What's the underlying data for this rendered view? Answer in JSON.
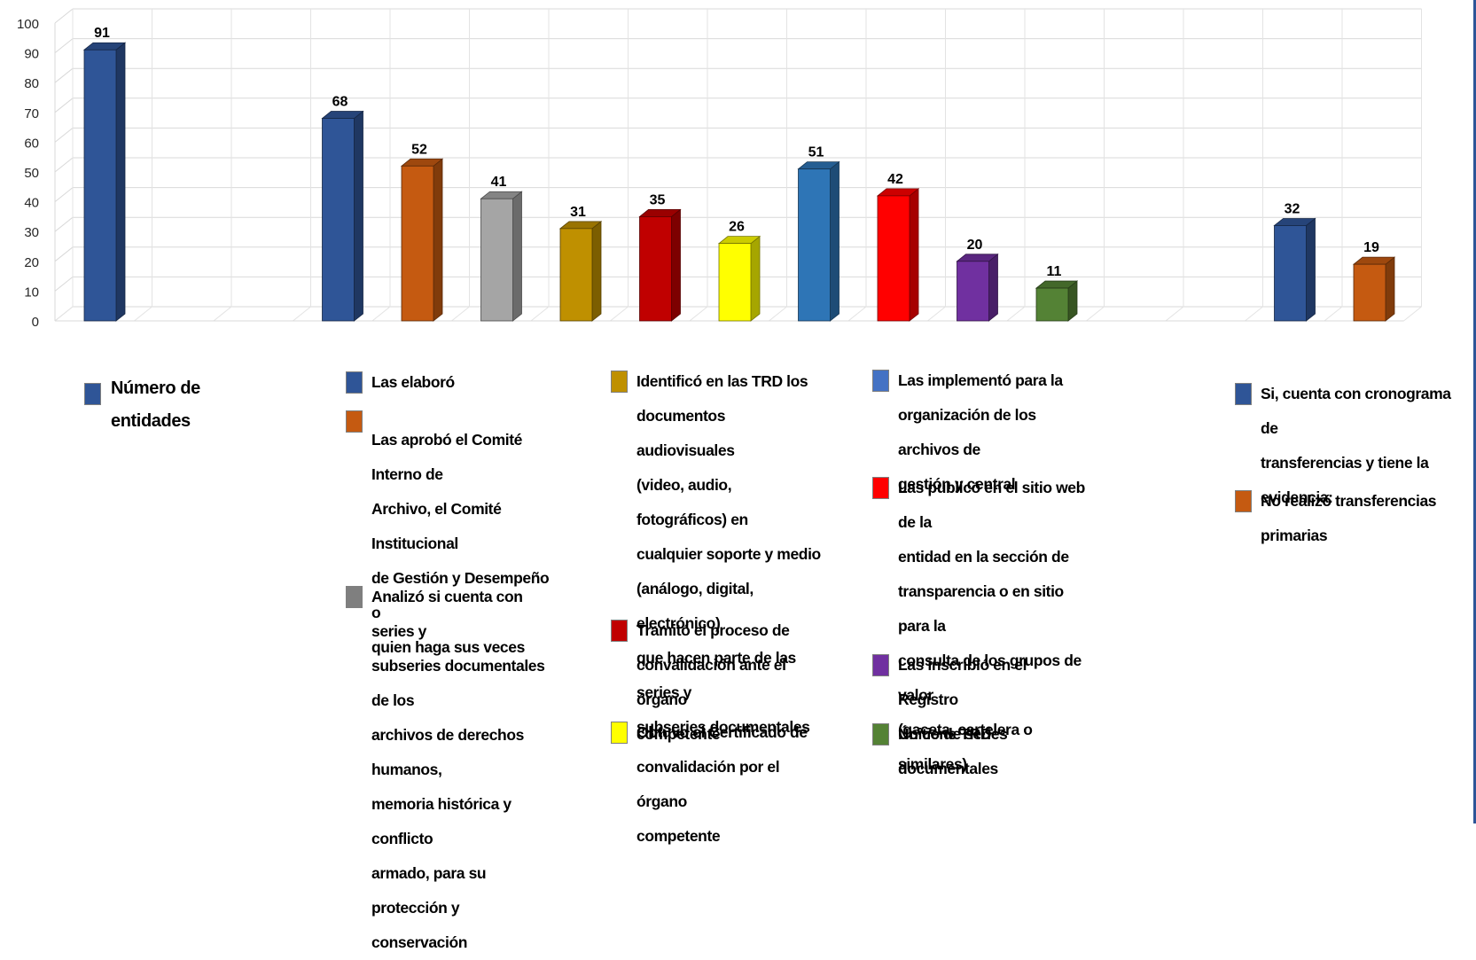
{
  "chart_data": {
    "type": "bar",
    "ylim": [
      0,
      100
    ],
    "yticks": [
      0,
      10,
      20,
      30,
      40,
      50,
      60,
      70,
      80,
      90,
      100
    ],
    "grid": true,
    "legend_position": "bottom",
    "bars": [
      {
        "slot": 0,
        "value": 91,
        "label": "91",
        "color": "#2f5597",
        "group": "Número de entidades"
      },
      {
        "slot": 3,
        "value": 68,
        "label": "68",
        "color": "#2f5597",
        "group": "Las elaboró"
      },
      {
        "slot": 4,
        "value": 52,
        "label": "52",
        "color": "#c55a11",
        "group": "Las aprobó el Comité Interno de Archivo, el Comité Institucional de Gestión y Desempeño o quien haga sus veces"
      },
      {
        "slot": 5,
        "value": 41,
        "label": "41",
        "color": "#a5a5a5",
        "group": "Analizó si cuenta con series y subseries documentales de los archivos de derechos humanos, memoria histórica y conflicto armado, para su protección y conservación"
      },
      {
        "slot": 6,
        "value": 31,
        "label": "31",
        "color": "#bf9000",
        "group": "Identificó en las TRD los documentos audiovisuales (video, audio, fotográficos) en cualquier soporte y medio (análogo, digital, electrónico) que hacen parte de las series y subseries documentales"
      },
      {
        "slot": 7,
        "value": 35,
        "label": "35",
        "color": "#c00000",
        "group": "Tramitó el proceso de convalidación ante el órgano competente"
      },
      {
        "slot": 8,
        "value": 26,
        "label": "26",
        "color": "#ffff00",
        "group": "Obtuvo el Certificado de convalidación por el órgano competente"
      },
      {
        "slot": 9,
        "value": 51,
        "label": "51",
        "color": "#2e75b6",
        "group": "Las implementó para la organización de los archivos de gestión y central"
      },
      {
        "slot": 10,
        "value": 42,
        "label": "42",
        "color": "#ff0000",
        "group": "Las publicó en el sitio web de la entidad en la sección de transparencia o en sitio para la consulta de los grupos de valor (gaceta, cartelera o similares)"
      },
      {
        "slot": 11,
        "value": 20,
        "label": "20",
        "color": "#7030a0",
        "group": "Las inscribió en el Registro Único de series documentales"
      },
      {
        "slot": 12,
        "value": 11,
        "label": "11",
        "color": "#548235",
        "group": "No tiene TRD"
      },
      {
        "slot": 15,
        "value": 32,
        "label": "32",
        "color": "#2f5597",
        "group": "Si, cuenta con cronograma de transferencias y tiene la evidencia:"
      },
      {
        "slot": 16,
        "value": 19,
        "label": "19",
        "color": "#c55a11",
        "group": "No realizó transferencias primarias"
      }
    ]
  },
  "legend": [
    {
      "id": "numero-entidades",
      "lines": [
        "Número de",
        "entidades"
      ],
      "color": "#2f5597"
    },
    {
      "id": "las-elaboro",
      "lines": [
        "Las elaboró"
      ],
      "color": "#2f5597"
    },
    {
      "id": "las-aprobo",
      "lines": [
        "Las aprobó el Comité Interno de",
        "Archivo, el Comité Institucional",
        "de Gestión y Desempeño o",
        "quien haga sus veces"
      ],
      "color": "#c55a11"
    },
    {
      "id": "analizo",
      "lines": [
        "Analizó si cuenta con series y",
        "subseries documentales de los",
        "archivos de derechos humanos,",
        "memoria histórica y conflicto",
        "armado, para su protección y",
        "conservación"
      ],
      "color": "#7f7f7f"
    },
    {
      "id": "identifico",
      "lines": [
        "Identificó en las TRD los",
        "documentos audiovisuales",
        "(video, audio, fotográficos) en",
        "cualquier soporte y medio",
        "(análogo, digital, electrónico)",
        "que hacen parte de las series y",
        "subseries documentales"
      ],
      "color": "#bf9000"
    },
    {
      "id": "tramito",
      "lines": [
        "Tramitó el proceso de",
        "convalidación ante el órgano",
        "competente"
      ],
      "color": "#c00000"
    },
    {
      "id": "obtuvo",
      "lines": [
        "Obtuvo el Certificado de",
        "convalidación por el órgano",
        "competente"
      ],
      "color": "#ffff00"
    },
    {
      "id": "implemento",
      "lines": [
        "Las implementó para la",
        "organización de los archivos de",
        "gestión y central"
      ],
      "color": "#4472c4"
    },
    {
      "id": "publico",
      "lines": [
        "Las publicó en el sitio web de la",
        "entidad en la sección de",
        "transparencia o en sitio para la",
        "consulta de los grupos de valor",
        "(gaceta, cartelera o similares)"
      ],
      "color": "#ff0000"
    },
    {
      "id": "inscribio",
      "lines": [
        "Las inscribió en el Registro",
        "Único de series documentales"
      ],
      "color": "#7030a0"
    },
    {
      "id": "no-tiene-trd",
      "lines": [
        "No tiene TRD"
      ],
      "color": "#548235"
    },
    {
      "id": "cronograma",
      "lines": [
        "Si, cuenta con cronograma de",
        "transferencias y tiene la",
        "evidencia:"
      ],
      "color": "#2f5597"
    },
    {
      "id": "no-realizo",
      "lines": [
        "No realizó transferencias",
        "primarias"
      ],
      "color": "#c55a11"
    }
  ]
}
